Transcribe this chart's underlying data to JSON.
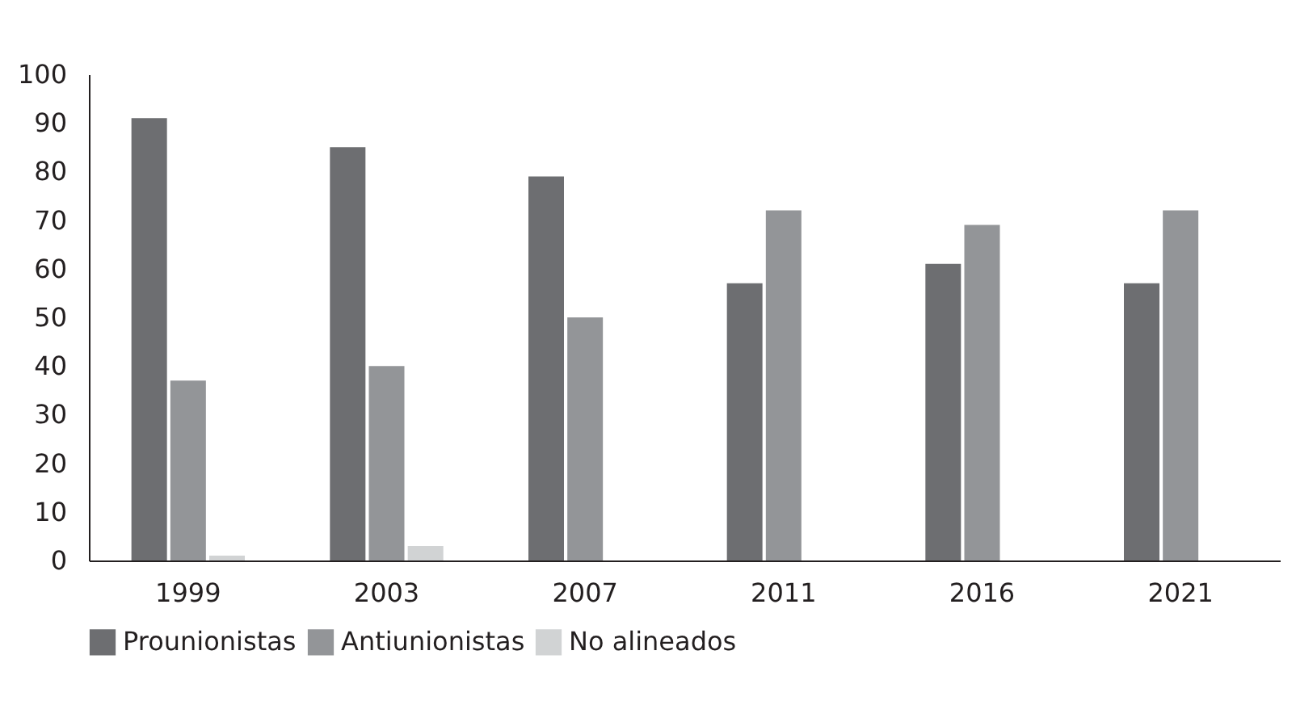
{
  "chart_data": {
    "type": "bar",
    "categories": [
      "1999",
      "2003",
      "2007",
      "2011",
      "2016",
      "2021"
    ],
    "series": [
      {
        "name": "Prounionistas",
        "color": "#6d6e71",
        "values": [
          91,
          85,
          79,
          57,
          61,
          57
        ]
      },
      {
        "name": "Antiunionistas",
        "color": "#939598",
        "values": [
          37,
          40,
          50,
          72,
          69,
          72
        ]
      },
      {
        "name": "No alineados",
        "color": "#d1d3d4",
        "values": [
          1,
          3,
          null,
          null,
          null,
          null
        ]
      }
    ],
    "ylim": [
      0,
      100
    ],
    "yticks": [
      0,
      10,
      20,
      30,
      40,
      50,
      60,
      70,
      80,
      90,
      100
    ],
    "grid": false,
    "legend": "bottom"
  }
}
